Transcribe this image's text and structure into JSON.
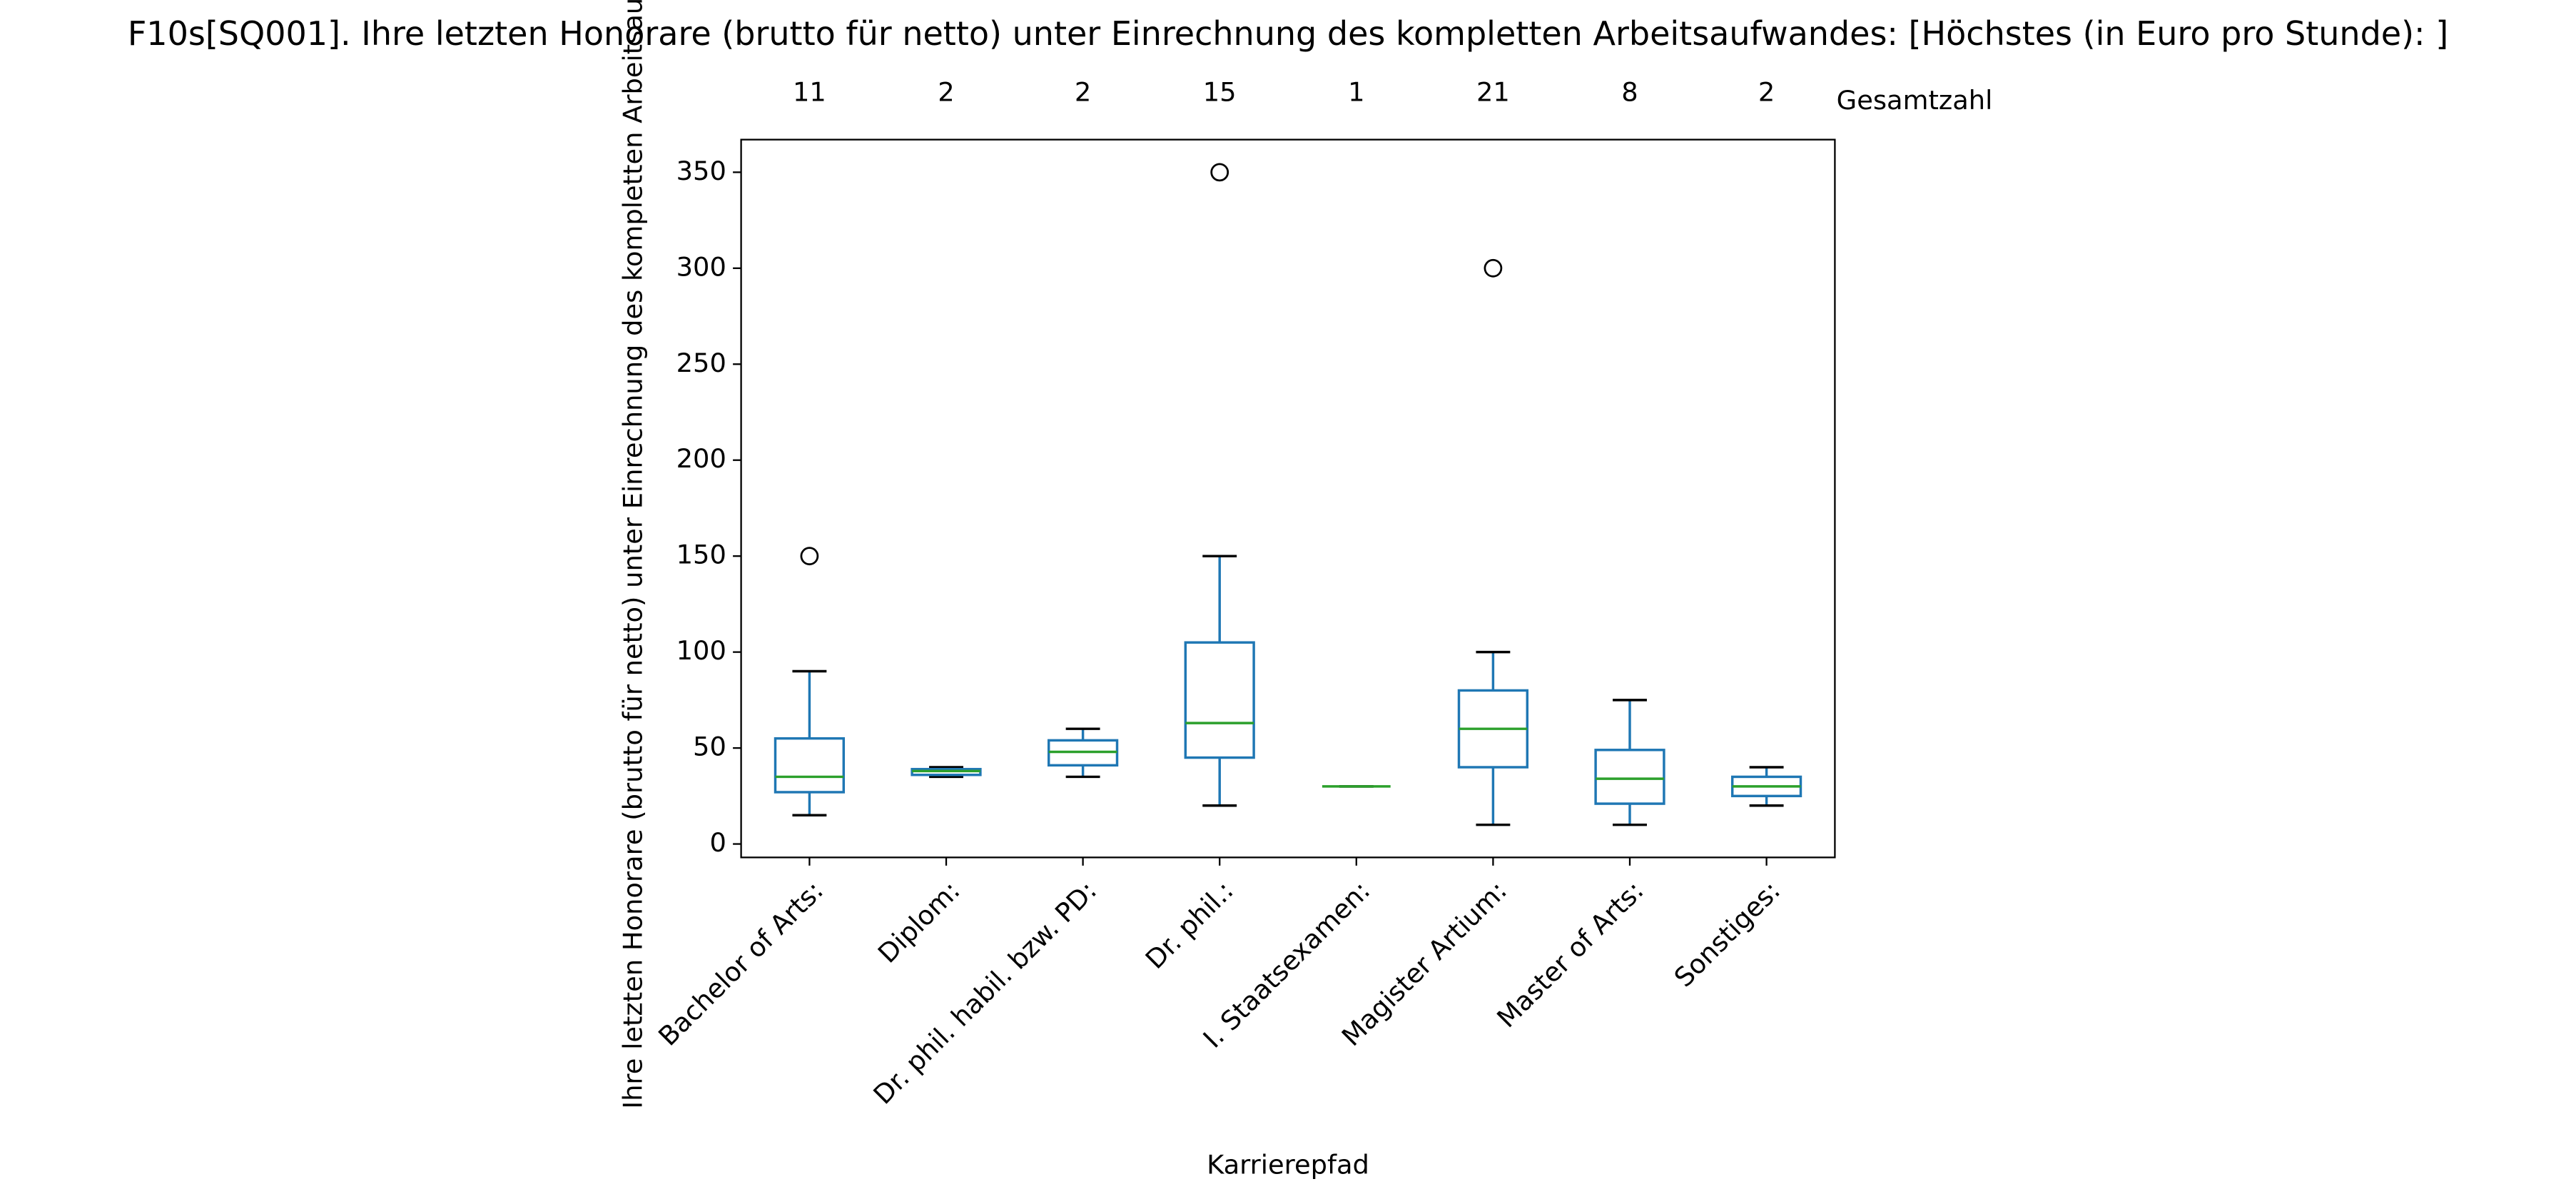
{
  "chart_data": {
    "type": "box",
    "title": "F10s[SQ001]. Ihre letzten Honorare (brutto für netto) unter Einrechnung des kompletten Arbeitsaufwandes:  [Höchstes (in Euro pro Stunde): ]",
    "x_label": "Karrierepfad",
    "y_label": "Ihre letzten Honorare (brutto für netto) unter Einrechnung des kompletten Arbeitsaufwandes",
    "count_label": "Gesamtzahl",
    "categories": [
      "Bachelor of Arts:",
      "Diplom:",
      "Dr. phil. habil. bzw. PD:",
      "Dr. phil.:",
      "I. Staatsexamen:",
      "Magister Artium:",
      "Master of Arts:",
      "Sonstiges:"
    ],
    "counts": [
      11,
      2,
      2,
      15,
      1,
      21,
      8,
      2
    ],
    "boxes": [
      {
        "whisker_low": 15,
        "q1": 27,
        "median": 35,
        "q3": 55,
        "whisker_high": 90,
        "outliers": [
          150
        ]
      },
      {
        "whisker_low": 35,
        "q1": 36,
        "median": 38,
        "q3": 39,
        "whisker_high": 40,
        "outliers": []
      },
      {
        "whisker_low": 35,
        "q1": 41,
        "median": 48,
        "q3": 54,
        "whisker_high": 60,
        "outliers": []
      },
      {
        "whisker_low": 20,
        "q1": 45,
        "median": 63,
        "q3": 105,
        "whisker_high": 150,
        "outliers": [
          350
        ]
      },
      {
        "whisker_low": 30,
        "q1": 30,
        "median": 30,
        "q3": 30,
        "whisker_high": 30,
        "outliers": []
      },
      {
        "whisker_low": 10,
        "q1": 40,
        "median": 60,
        "q3": 80,
        "whisker_high": 100,
        "outliers": [
          300
        ]
      },
      {
        "whisker_low": 10,
        "q1": 21,
        "median": 34,
        "q3": 49,
        "whisker_high": 75,
        "outliers": []
      },
      {
        "whisker_low": 20,
        "q1": 25,
        "median": 30,
        "q3": 35,
        "whisker_high": 40,
        "outliers": []
      }
    ],
    "box_color": "#1f77b4",
    "median_color": "#2ca02c",
    "ylim": [
      -7,
      367
    ],
    "yticks": [
      0,
      50,
      100,
      150,
      200,
      250,
      300,
      350
    ]
  }
}
